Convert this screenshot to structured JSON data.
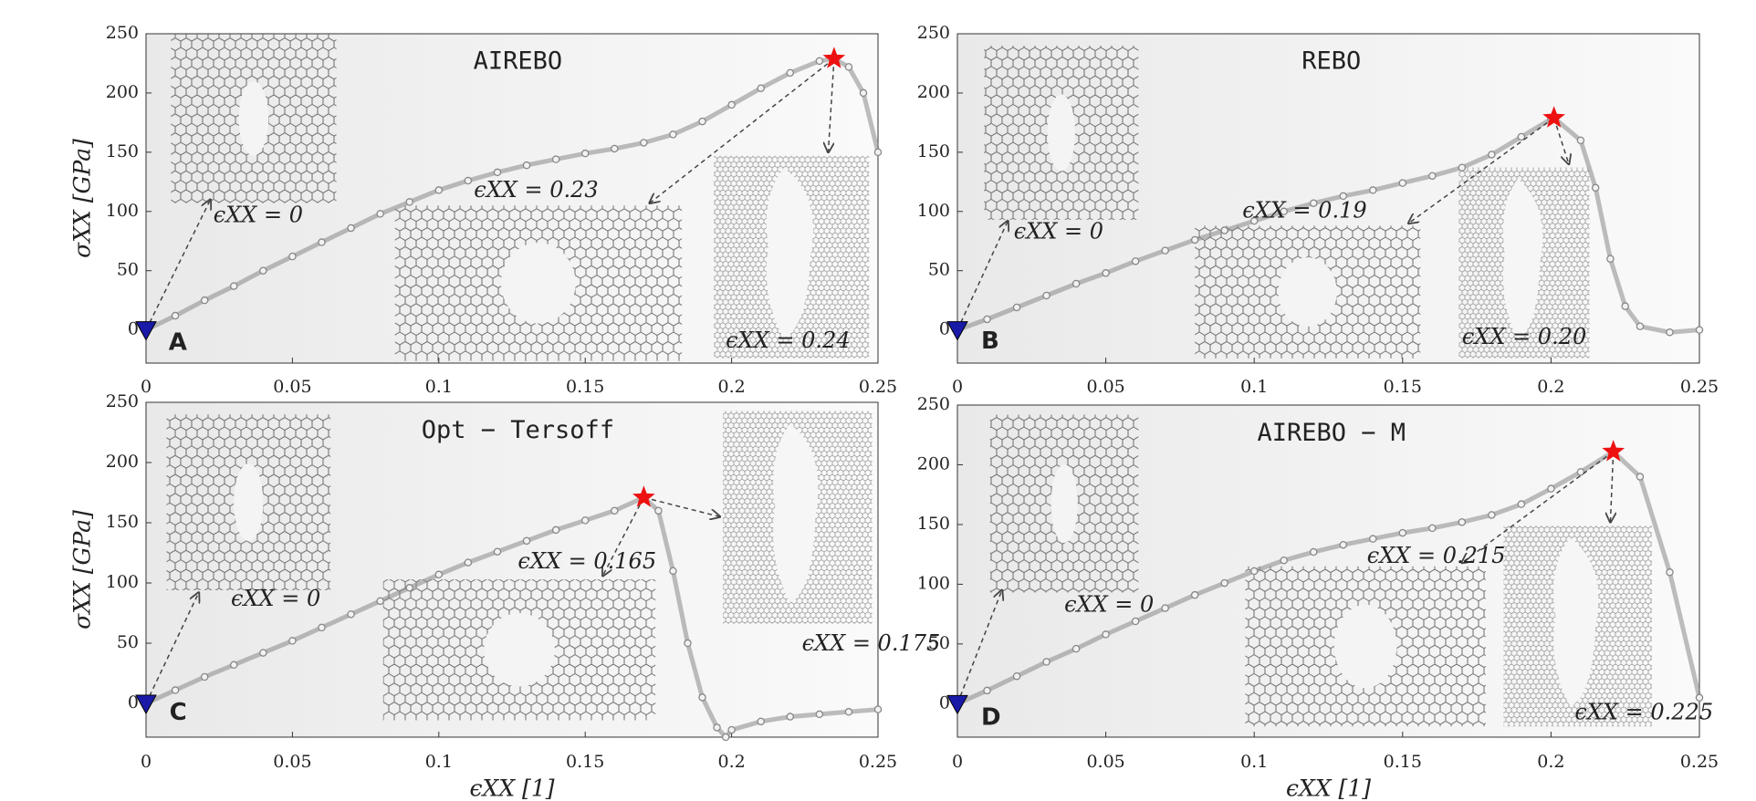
{
  "chart_data": [
    {
      "type": "scatter",
      "title": "AIREBO",
      "panel_label": "A",
      "ylabel": "σXX [GPa]",
      "x": [
        0,
        0.01,
        0.02,
        0.03,
        0.04,
        0.05,
        0.06,
        0.07,
        0.08,
        0.09,
        0.1,
        0.11,
        0.12,
        0.13,
        0.14,
        0.15,
        0.16,
        0.17,
        0.18,
        0.19,
        0.2,
        0.21,
        0.22,
        0.23,
        0.235,
        0.24,
        0.245,
        0.25
      ],
      "values": [
        0,
        12,
        25,
        37,
        50,
        62,
        74,
        86,
        98,
        108,
        118,
        126,
        133,
        139,
        144,
        149,
        153,
        158,
        165,
        176,
        190,
        204,
        217,
        227,
        229,
        222,
        200,
        150
      ],
      "color": "#888888",
      "markers": [
        {
          "x": 0,
          "y": 0,
          "shape": "triangle",
          "color": "#1a1aa8"
        },
        {
          "x": 0.235,
          "y": 229,
          "shape": "star",
          "color": "#ee1111"
        }
      ],
      "annotations": [
        "ϵXX = 0",
        "ϵXX = 0.23",
        "ϵXX = 0.24"
      ],
      "xlim": [
        0,
        0.25
      ],
      "ylim": [
        -28,
        250
      ],
      "xticks": [
        0,
        0.05,
        0.1,
        0.15,
        0.2,
        0.25
      ],
      "yticks": [
        0,
        50,
        100,
        150,
        200,
        250
      ]
    },
    {
      "type": "scatter",
      "title": "REBO",
      "panel_label": "B",
      "x": [
        0,
        0.01,
        0.02,
        0.03,
        0.04,
        0.05,
        0.06,
        0.07,
        0.08,
        0.09,
        0.1,
        0.11,
        0.12,
        0.13,
        0.14,
        0.15,
        0.16,
        0.17,
        0.18,
        0.19,
        0.2,
        0.201,
        0.21,
        0.215,
        0.22,
        0.225,
        0.23,
        0.24,
        0.25
      ],
      "values": [
        0,
        9,
        19,
        29,
        39,
        48,
        58,
        67,
        76,
        84,
        92,
        100,
        107,
        113,
        118,
        124,
        130,
        137,
        148,
        163,
        178,
        179,
        160,
        120,
        60,
        20,
        3,
        -2,
        0
      ],
      "color": "#888888",
      "markers": [
        {
          "x": 0,
          "y": 0,
          "shape": "triangle",
          "color": "#1a1aa8"
        },
        {
          "x": 0.201,
          "y": 179,
          "shape": "star",
          "color": "#ee1111"
        }
      ],
      "annotations": [
        "ϵXX = 0",
        "ϵXX = 0.19",
        "ϵXX = 0.20"
      ],
      "xlim": [
        0,
        0.25
      ],
      "ylim": [
        -28,
        250
      ],
      "xticks": [
        0,
        0.05,
        0.1,
        0.15,
        0.2,
        0.25
      ],
      "yticks": [
        0,
        50,
        100,
        150,
        200,
        250
      ]
    },
    {
      "type": "scatter",
      "title": "Opt − Tersoff",
      "panel_label": "C",
      "ylabel": "σXX [GPa]",
      "xlabel": "ϵXX [1]",
      "x": [
        0,
        0.01,
        0.02,
        0.03,
        0.04,
        0.05,
        0.06,
        0.07,
        0.08,
        0.09,
        0.1,
        0.11,
        0.12,
        0.13,
        0.14,
        0.15,
        0.16,
        0.17,
        0.175,
        0.18,
        0.185,
        0.19,
        0.195,
        0.198,
        0.2,
        0.21,
        0.22,
        0.23,
        0.24,
        0.25
      ],
      "values": [
        0,
        11,
        22,
        32,
        42,
        52,
        63,
        74,
        85,
        96,
        107,
        117,
        126,
        135,
        144,
        152,
        160,
        171,
        160,
        110,
        50,
        5,
        -20,
        -28,
        -22,
        -15,
        -11,
        -9,
        -7,
        -5
      ],
      "color": "#888888",
      "markers": [
        {
          "x": 0,
          "y": 0,
          "shape": "triangle",
          "color": "#1a1aa8"
        },
        {
          "x": 0.17,
          "y": 171,
          "shape": "star",
          "color": "#ee1111"
        }
      ],
      "annotations": [
        "ϵXX = 0",
        "ϵXX = 0.165",
        "ϵXX = 0.175"
      ],
      "xlim": [
        0,
        0.25
      ],
      "ylim": [
        -28,
        250
      ],
      "xticks": [
        0,
        0.05,
        0.1,
        0.15,
        0.2,
        0.25
      ],
      "yticks": [
        0,
        50,
        100,
        150,
        200,
        250
      ]
    },
    {
      "type": "scatter",
      "title": "AIREBO − M",
      "panel_label": "D",
      "xlabel": "ϵXX [1]",
      "x": [
        0,
        0.01,
        0.02,
        0.03,
        0.04,
        0.05,
        0.06,
        0.07,
        0.08,
        0.09,
        0.1,
        0.11,
        0.12,
        0.13,
        0.14,
        0.15,
        0.16,
        0.17,
        0.18,
        0.19,
        0.2,
        0.21,
        0.221,
        0.23,
        0.24,
        0.25
      ],
      "values": [
        0,
        11,
        23,
        35,
        46,
        58,
        69,
        80,
        91,
        101,
        111,
        120,
        127,
        133,
        138,
        143,
        147,
        152,
        158,
        167,
        180,
        194,
        211,
        190,
        110,
        5
      ],
      "color": "#888888",
      "markers": [
        {
          "x": 0,
          "y": 0,
          "shape": "triangle",
          "color": "#1a1aa8"
        },
        {
          "x": 0.221,
          "y": 211,
          "shape": "star",
          "color": "#ee1111"
        }
      ],
      "annotations": [
        "ϵXX = 0",
        "ϵXX = 0.215",
        "ϵXX = 0.225"
      ],
      "xlim": [
        0,
        0.25
      ],
      "ylim": [
        -28,
        250
      ],
      "xticks": [
        0,
        0.05,
        0.1,
        0.15,
        0.2,
        0.25
      ],
      "yticks": [
        0,
        50,
        100,
        150,
        200,
        250
      ]
    }
  ]
}
